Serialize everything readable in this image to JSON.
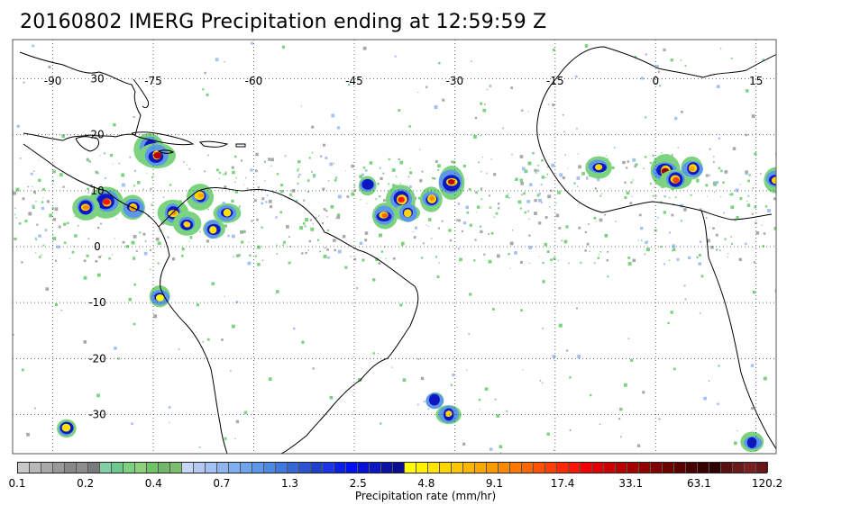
{
  "title": "20160802 IMERG Precipitation ending at 12:59:59 Z",
  "map": {
    "projection": "equirectangular",
    "lon_range": [
      -96,
      18
    ],
    "lat_range": [
      -37,
      37
    ],
    "lon_ticks": [
      -90,
      -75,
      -60,
      -45,
      -30,
      -15,
      0,
      15
    ],
    "lat_ticks": [
      30,
      20,
      10,
      0,
      -10,
      -20,
      -30
    ],
    "lon_tick_labels": [
      "-90",
      "-75",
      "-60",
      "-45",
      "-30",
      "-15",
      "0",
      "15"
    ],
    "lat_tick_labels": [
      "30",
      "20",
      "10",
      "0",
      "-10",
      "-20",
      "-30"
    ],
    "gridlines": "dotted",
    "land_fill": "#ffffff",
    "coastline_color": "#000000"
  },
  "colorbar": {
    "title": "Precipitation rate (mm/hr)",
    "tick_labels": [
      "0.1",
      "0.2",
      "0.4",
      "0.7",
      "1.3",
      "2.5",
      "4.8",
      "9.1",
      "17.4",
      "33.1",
      "63.1",
      "120.2"
    ],
    "colors": [
      "#c8c8c8",
      "#b8b8b8",
      "#a8a8a8",
      "#989898",
      "#888888",
      "#8c8c8c",
      "#7a7a7a",
      "#7fd1a5",
      "#6fc790",
      "#7bd27f",
      "#8fd27b",
      "#6fc468",
      "#72b86c",
      "#7cbe6f",
      "#c6d6f6",
      "#b3c9f3",
      "#a3c1f4",
      "#8fb6f0",
      "#7fb0f0",
      "#6fa4ed",
      "#5d97e9",
      "#4d88e5",
      "#4078e0",
      "#3665d8",
      "#2b52d1",
      "#1f41cb",
      "#1b34e6",
      "#0a1ee8",
      "#0010f0",
      "#0610d8",
      "#0c17c0",
      "#0c12a6",
      "#0b0c90",
      "#ffff00",
      "#fff200",
      "#ffe400",
      "#ffd600",
      "#ffc600",
      "#ffb600",
      "#ffa600",
      "#ff9900",
      "#ff8a00",
      "#ff7800",
      "#ff6600",
      "#ff5200",
      "#ff3e00",
      "#ff2a00",
      "#ff1600",
      "#f00000",
      "#e00000",
      "#cc0000",
      "#b80000",
      "#a40000",
      "#920000",
      "#800000",
      "#6e0000",
      "#5a0000",
      "#4a0000",
      "#3a0000",
      "#2e0000",
      "#5a1010",
      "#6b1a1a",
      "#7a2020",
      "#6b1616"
    ]
  },
  "legend_note": "",
  "precip_cells": [
    {
      "lon": -75.5,
      "lat": 17.5,
      "rate": 60
    },
    {
      "lon": -74.5,
      "lat": 16.2,
      "rate": 30
    },
    {
      "lon": -82,
      "lat": 8,
      "rate": 20
    },
    {
      "lon": -85,
      "lat": 7,
      "rate": 10
    },
    {
      "lon": -78,
      "lat": 7,
      "rate": 9
    },
    {
      "lon": -72,
      "lat": 6,
      "rate": 10
    },
    {
      "lon": -68,
      "lat": 9,
      "rate": 8
    },
    {
      "lon": -70,
      "lat": 4,
      "rate": 6
    },
    {
      "lon": -66,
      "lat": 3,
      "rate": 5
    },
    {
      "lon": -64,
      "lat": 6,
      "rate": 5
    },
    {
      "lon": -74,
      "lat": -9,
      "rate": 4
    },
    {
      "lon": -30.5,
      "lat": 11.5,
      "rate": 30
    },
    {
      "lon": -38,
      "lat": 8.5,
      "rate": 20
    },
    {
      "lon": -33.5,
      "lat": 8.5,
      "rate": 10
    },
    {
      "lon": -40.5,
      "lat": 5.5,
      "rate": 12
    },
    {
      "lon": -37,
      "lat": 6,
      "rate": 6
    },
    {
      "lon": -43,
      "lat": 11,
      "rate": 3
    },
    {
      "lon": 1.5,
      "lat": 13.5,
      "rate": 40
    },
    {
      "lon": 3,
      "lat": 12,
      "rate": 15
    },
    {
      "lon": 5.5,
      "lat": 14,
      "rate": 8
    },
    {
      "lon": -8.5,
      "lat": 14.2,
      "rate": 6
    },
    {
      "lon": 18,
      "lat": 12,
      "rate": 6
    },
    {
      "lon": -31,
      "lat": -30,
      "rate": 6
    },
    {
      "lon": -33,
      "lat": -27.5,
      "rate": 3
    },
    {
      "lon": -88,
      "lat": -32.5,
      "rate": 5
    },
    {
      "lon": 14.5,
      "lat": -35,
      "rate": 3
    }
  ]
}
